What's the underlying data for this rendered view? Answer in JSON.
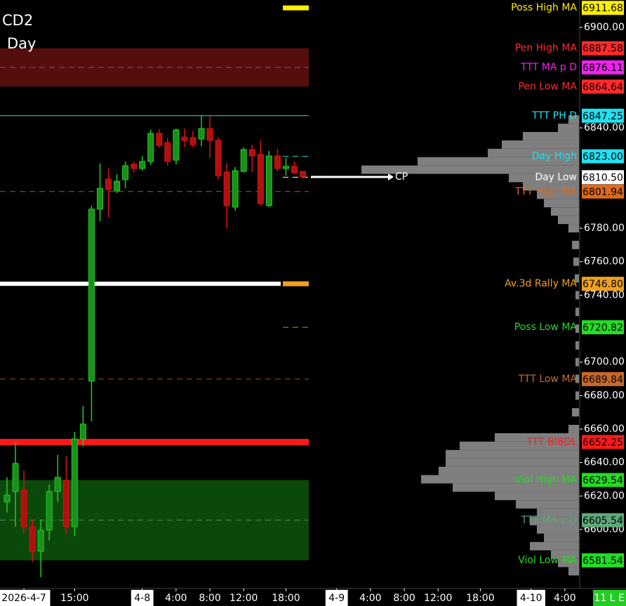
{
  "chart_data": {
    "type": "candlestick",
    "title": "CD2",
    "subtitle": "Day",
    "status": "11 L E",
    "current_price_label": "CP",
    "ylim": [
      6566,
      6916.4
    ],
    "xlim": [
      -0.83,
      67.67
    ],
    "yticks": [
      {
        "value": 6900,
        "label": "6900.00"
      },
      {
        "value": 6840,
        "label": "6840.00"
      },
      {
        "value": 6780,
        "label": "6780.00"
      },
      {
        "value": 6760,
        "label": "6760.00"
      },
      {
        "value": 6740,
        "label": "6740.00"
      },
      {
        "value": 6700,
        "label": "6700.00"
      },
      {
        "value": 6680,
        "label": "6680.00"
      },
      {
        "value": 6660,
        "label": "6660.00"
      },
      {
        "value": 6640,
        "label": "6640.00"
      },
      {
        "value": 6620,
        "label": "6620.00"
      },
      {
        "value": 6600,
        "label": "6600.00"
      }
    ],
    "xticks": [
      {
        "value": 2,
        "label": "2026-4-7"
      },
      {
        "value": 8,
        "label": "15:00"
      },
      {
        "value": 16,
        "label": "4-8"
      },
      {
        "value": 20,
        "label": "4:00"
      },
      {
        "value": 24,
        "label": "8:00"
      },
      {
        "value": 28,
        "label": "12:00"
      },
      {
        "value": 33,
        "label": "18:00"
      },
      {
        "value": 39,
        "label": "4-9"
      },
      {
        "value": 43,
        "label": "4:00"
      },
      {
        "value": 47,
        "label": "8:00"
      },
      {
        "value": 51,
        "label": "12:00"
      },
      {
        "value": 56,
        "label": "18:00"
      },
      {
        "value": 62,
        "label": "4-10"
      },
      {
        "value": 66,
        "label": "4:00"
      }
    ],
    "up_color": "#22cc22",
    "down_color": "#dd1111",
    "candles": {
      "x": [
        0,
        1,
        2,
        3,
        4,
        5,
        6,
        7,
        8,
        9,
        10,
        11,
        12,
        13,
        14,
        15,
        16,
        17,
        18,
        19,
        20,
        21,
        22,
        23,
        24,
        25,
        26,
        27,
        28,
        29,
        30,
        31,
        32,
        33,
        34,
        35
      ],
      "open": [
        6616.4,
        6622.7,
        6623.5,
        6601.7,
        6587,
        6599.6,
        6622.7,
        6629.4,
        6601.7,
        6654.1,
        6688.6,
        6791.4,
        6809.4,
        6802.3,
        6809,
        6818.2,
        6815.7,
        6819.9,
        6836.7,
        6831.2,
        6820.7,
        6834.5,
        6834.1,
        6833.3,
        6839.6,
        6832.5,
        6813.6,
        6792.6,
        6814,
        6827,
        6824.1,
        6793.5,
        6823.2,
        6815.7,
        6817,
        6814
      ],
      "high": [
        6631.1,
        6652.1,
        6635.3,
        6605.9,
        6605.9,
        6626.9,
        6644.5,
        6643.7,
        6658.3,
        6673.9,
        6793.5,
        6818.6,
        6815.7,
        6812.3,
        6819.9,
        6819.9,
        6823.2,
        6838.8,
        6839.2,
        6834.1,
        6839.6,
        6839.6,
        6838.3,
        6847.2,
        6847.2,
        6834.5,
        6819,
        6816.5,
        6828.3,
        6829.9,
        6832.5,
        6826.2,
        6827.4,
        6822,
        6819.9,
        6814
      ],
      "low": [
        6610.1,
        6601.7,
        6597.5,
        6580.7,
        6571.5,
        6593.3,
        6616.4,
        6597.5,
        6596.2,
        6649.5,
        6664.6,
        6784.2,
        6786.3,
        6801,
        6803.9,
        6813.2,
        6814.4,
        6817.8,
        6828.3,
        6817.4,
        6818.2,
        6828.7,
        6828.3,
        6829.1,
        6822,
        6809.4,
        6780,
        6790.5,
        6813.2,
        6813.6,
        6793.5,
        6792.6,
        6814,
        6811.5,
        6812.3,
        6810.7
      ],
      "close": [
        6620.6,
        6639.5,
        6601.7,
        6587,
        6599.6,
        6622.7,
        6631.1,
        6601.7,
        6654.1,
        6663,
        6791.4,
        6803.9,
        6803.1,
        6808.1,
        6817.4,
        6815.7,
        6819.9,
        6836.7,
        6829.5,
        6819.9,
        6838.8,
        6832.5,
        6829.9,
        6839.6,
        6832.5,
        6811.5,
        6793.5,
        6814.4,
        6827,
        6823.2,
        6794.7,
        6823.2,
        6815.7,
        6817,
        6813.2,
        6810.7
      ]
    },
    "levels": {
      "names": [
        "Poss High MA",
        "Pen High MA",
        "TTT MA p D",
        "Pen Low MA",
        "TTT PH D",
        "Day High",
        "Day Low",
        "TTT High MA",
        "Av.3d Rally MA",
        "Poss Low MA",
        "TTT Low MA",
        "TTT BIBDL",
        "Viol High MA",
        "TTT MA v D",
        "Viol Low MA"
      ],
      "values": [
        6911.68,
        6887.58,
        6876.11,
        6864.64,
        6847.25,
        6823.0,
        6810.5,
        6801.94,
        6746.8,
        6720.82,
        6689.84,
        6652.25,
        6629.54,
        6605.54,
        6581.54
      ],
      "value_labels": [
        "6911.68",
        "6887.58",
        "6876.11",
        "6864.64",
        "6847.25",
        "6823.00",
        "6810.50",
        "6801.94",
        "6746.80",
        "6720.82",
        "6689.84",
        "6652.25",
        "6629.54",
        "6605.54",
        "6581.54"
      ],
      "colors": [
        "#ffee00",
        "#ff2a2a",
        "#ee22ee",
        "#ff2a2a",
        "#22e0f0",
        "#22e0f0",
        "#ffffff",
        "#e06a1a",
        "#f0a020",
        "#22dd22",
        "#c8682a",
        "#ff1a1a",
        "#22dd22",
        "#5fa87a",
        "#22dd22"
      ],
      "styles": [
        "marker",
        "band-start",
        "dashed",
        "band-end",
        "line",
        "short-dashed",
        "short-dashed",
        "dashed",
        "rally",
        "short-dashed",
        "dashed",
        "thick",
        "band-start",
        "dashed",
        "band-end"
      ]
    },
    "volume_profile": {
      "color": "#7f7f7f",
      "prices": [
        6845,
        6840,
        6835,
        6830,
        6825,
        6820,
        6815,
        6810,
        6805,
        6800,
        6795,
        6790,
        6785,
        6780,
        6770,
        6760,
        6750,
        6740,
        6730,
        6720,
        6710,
        6700,
        6690,
        6680,
        6670,
        6660,
        6655,
        6650,
        6645,
        6640,
        6635,
        6630,
        6625,
        6620,
        6615,
        6610,
        6605,
        6600,
        6595,
        6590,
        6585,
        6580,
        6575
      ],
      "volumes": [
        15,
        30,
        80,
        110,
        130,
        230,
        310,
        100,
        80,
        60,
        50,
        40,
        30,
        15,
        10,
        8,
        6,
        5,
        5,
        5,
        5,
        5,
        5,
        5,
        10,
        15,
        120,
        170,
        190,
        190,
        200,
        225,
        180,
        120,
        90,
        60,
        70,
        60,
        50,
        70,
        40,
        30,
        15
      ]
    }
  }
}
